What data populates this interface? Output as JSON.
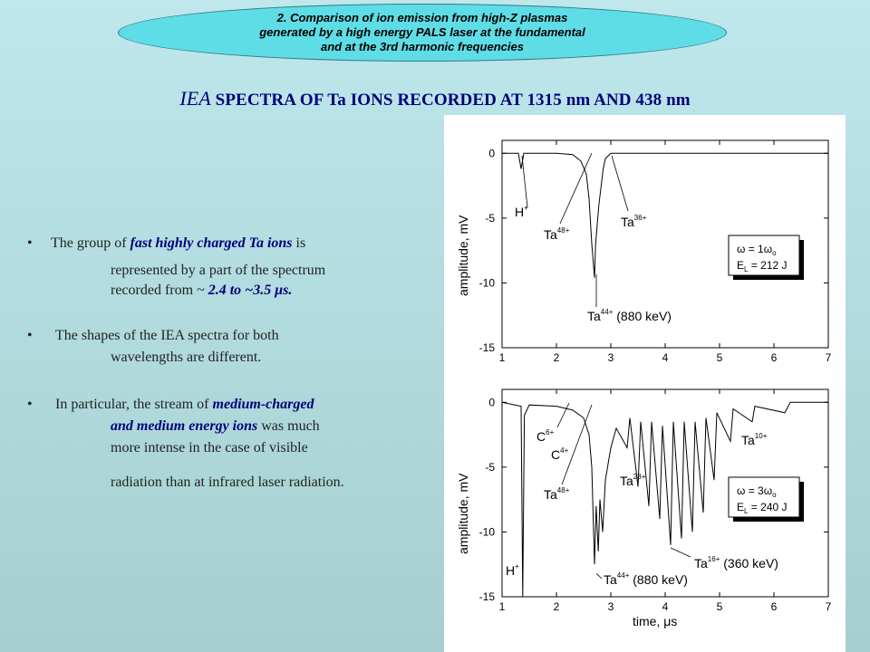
{
  "banner": {
    "lines": [
      "2. Comparison of ion emission from high-Z plasmas",
      "generated by a high energy PALS laser at the fundamental",
      "and at the 3rd harmonic frequencies"
    ]
  },
  "title": {
    "prefix": "IEA",
    "rest": " SPECTRA OF Ta IONS RECORDED AT 1315 nm AND 438 nm"
  },
  "bullets": {
    "b1": {
      "a": "The group of ",
      "b": "fast highly charged Ta ions",
      "c": " is",
      "d": "represented by a part of the spectrum",
      "e": "recorded from ~ ",
      "f": "2.4 to ~3.5 μs."
    },
    "b2": {
      "a": "The shapes of the IEA spectra for both",
      "b": "wavelengths are different."
    },
    "b3": {
      "a": "In particular, the stream of ",
      "b": "medium-charged",
      "c": "and medium energy ions",
      "d": " was much",
      "e": "more intense in the case of visible",
      "f": "radiation than at infrared laser radiation."
    },
    "symbol": "•"
  },
  "chart_data": [
    {
      "type": "line",
      "xlabel": "",
      "ylabel": "amplitude, mV",
      "xlim": [
        1,
        7
      ],
      "ylim": [
        -15,
        1
      ],
      "xticks": [
        "1",
        "2",
        "3",
        "4",
        "5",
        "6",
        "7"
      ],
      "yticks": [
        "0",
        "-5",
        "-10",
        "-15"
      ],
      "series": [
        {
          "points": [
            [
              1.0,
              0
            ],
            [
              1.3,
              0
            ],
            [
              1.35,
              -1.2
            ],
            [
              1.4,
              0
            ],
            [
              2.0,
              0
            ],
            [
              2.3,
              -0.1
            ],
            [
              2.45,
              -0.6
            ],
            [
              2.55,
              -1.6
            ],
            [
              2.6,
              -3.5
            ],
            [
              2.65,
              -7.0
            ],
            [
              2.7,
              -9.6
            ],
            [
              2.72,
              -7.0
            ],
            [
              2.75,
              -5.5
            ],
            [
              2.78,
              -4.0
            ],
            [
              2.82,
              -2.6
            ],
            [
              2.86,
              -1.2
            ],
            [
              2.9,
              -0.4
            ],
            [
              3.0,
              0
            ],
            [
              7.0,
              0
            ]
          ]
        }
      ],
      "legend": {
        "line1": "ω = 1ω",
        "line1_sub": "o",
        "line2a": "E",
        "line2_sub": "L",
        "line2b": " = 212 J"
      },
      "annotations": [
        {
          "base": "H",
          "sup": "+"
        },
        {
          "base": "Ta",
          "sup": "48+"
        },
        {
          "base": "Ta",
          "sup": "36+"
        },
        {
          "base": "Ta",
          "sup": "44+",
          "tail": " (880 keV)"
        }
      ]
    },
    {
      "type": "line",
      "xlabel": "time, μs",
      "ylabel": "amplitude, mV",
      "xlim": [
        1,
        7
      ],
      "ylim": [
        -15,
        1
      ],
      "xticks": [
        "1",
        "2",
        "3",
        "4",
        "5",
        "6",
        "7"
      ],
      "yticks": [
        "0",
        "-5",
        "-10",
        "-15"
      ],
      "series": [
        {
          "points": [
            [
              1.0,
              0
            ],
            [
              1.35,
              -0.3
            ],
            [
              1.38,
              -15
            ],
            [
              1.41,
              -1.0
            ],
            [
              1.5,
              -0.2
            ],
            [
              2.0,
              -0.3
            ],
            [
              2.3,
              -0.6
            ],
            [
              2.5,
              -1.2
            ],
            [
              2.6,
              -2.5
            ],
            [
              2.65,
              -5.0
            ],
            [
              2.7,
              -12.5
            ],
            [
              2.73,
              -8.0
            ],
            [
              2.77,
              -11.5
            ],
            [
              2.8,
              -7.5
            ],
            [
              2.85,
              -10.0
            ],
            [
              2.9,
              -6.0
            ],
            [
              3.0,
              -3.5
            ],
            [
              3.1,
              -2.0
            ],
            [
              3.3,
              -3.5
            ],
            [
              3.35,
              -1.2
            ],
            [
              3.5,
              -6.5
            ],
            [
              3.55,
              -1.5
            ],
            [
              3.7,
              -8.0
            ],
            [
              3.75,
              -1.5
            ],
            [
              3.9,
              -9.0
            ],
            [
              3.95,
              -1.8
            ],
            [
              4.1,
              -11.0
            ],
            [
              4.15,
              -1.5
            ],
            [
              4.3,
              -10.5
            ],
            [
              4.35,
              -1.5
            ],
            [
              4.5,
              -10.0
            ],
            [
              4.55,
              -1.5
            ],
            [
              4.7,
              -8.5
            ],
            [
              4.75,
              -1.2
            ],
            [
              4.9,
              -6.0
            ],
            [
              4.95,
              -0.8
            ],
            [
              5.2,
              -3.0
            ],
            [
              5.25,
              -0.5
            ],
            [
              5.6,
              -1.5
            ],
            [
              5.65,
              -0.3
            ],
            [
              6.2,
              -0.8
            ],
            [
              6.3,
              0
            ],
            [
              7.0,
              0
            ]
          ]
        }
      ],
      "legend": {
        "line1": "ω = 3ω",
        "line1_sub": "o",
        "line2a": "E",
        "line2_sub": "L",
        "line2b": " = 240 J"
      },
      "annotations": [
        {
          "base": "C",
          "sup": "6+"
        },
        {
          "base": "C",
          "sup": "4+"
        },
        {
          "base": "Ta",
          "sup": "10+"
        },
        {
          "base": "Ta",
          "sup": "28+"
        },
        {
          "base": "Ta",
          "sup": "48+"
        },
        {
          "base": "H",
          "sup": "+"
        },
        {
          "base": "Ta",
          "sup": "16+",
          "tail": " (360 keV)"
        },
        {
          "base": "Ta",
          "sup": "44+",
          "tail": " (880 keV)"
        }
      ]
    }
  ]
}
